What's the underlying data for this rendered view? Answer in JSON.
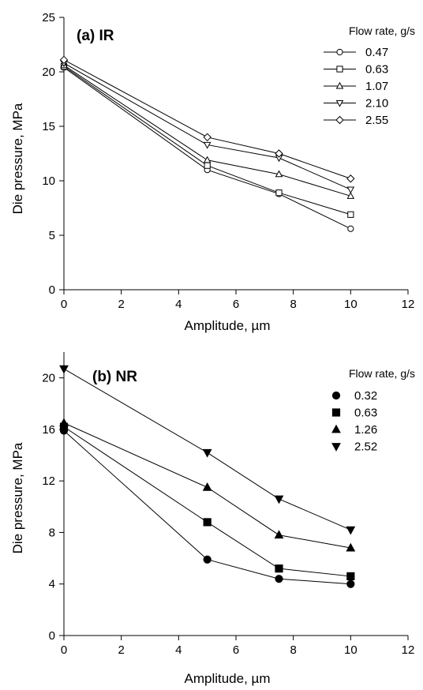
{
  "chart_data": [
    {
      "type": "line",
      "title": "(a) IR",
      "xlabel": "Amplitude, µm",
      "ylabel": "Die pressure, MPa",
      "xlim": [
        0,
        12
      ],
      "ylim": [
        0,
        25
      ],
      "xticks": [
        0,
        2,
        4,
        6,
        8,
        10,
        12
      ],
      "yticks": [
        0,
        5,
        10,
        15,
        20,
        25
      ],
      "grid": false,
      "legend_title": "Flow rate, g/s",
      "legend_placement": "top-right",
      "marker_style": "open",
      "x": [
        0,
        5,
        7.5,
        10
      ],
      "series": [
        {
          "name": "0.47",
          "marker": "circle",
          "values": [
            20.4,
            11.0,
            8.8,
            5.6
          ]
        },
        {
          "name": "0.63",
          "marker": "square",
          "values": [
            20.5,
            11.4,
            8.9,
            6.9
          ]
        },
        {
          "name": "1.07",
          "marker": "triangle-up",
          "values": [
            20.6,
            11.9,
            10.6,
            8.6
          ]
        },
        {
          "name": "2.10",
          "marker": "triangle-down",
          "values": [
            20.8,
            13.3,
            12.1,
            9.2
          ]
        },
        {
          "name": "2.55",
          "marker": "diamond",
          "values": [
            21.1,
            14.0,
            12.5,
            10.2
          ]
        }
      ]
    },
    {
      "type": "line",
      "title": "(b) NR",
      "xlabel": "Amplitude, µm",
      "ylabel": "Die pressure, MPa",
      "xlim": [
        0,
        12
      ],
      "ylim": [
        0,
        22
      ],
      "xticks": [
        0,
        2,
        4,
        6,
        8,
        10,
        12
      ],
      "yticks": [
        0,
        4,
        8,
        12,
        16,
        20
      ],
      "grid": false,
      "legend_title": "Flow rate, g/s",
      "legend_placement": "top-right",
      "marker_style": "filled",
      "x": [
        0,
        5,
        7.5,
        10
      ],
      "series": [
        {
          "name": "0.32",
          "marker": "circle",
          "values": [
            15.9,
            5.9,
            4.4,
            4.0
          ]
        },
        {
          "name": "0.63",
          "marker": "square",
          "values": [
            16.2,
            8.8,
            5.2,
            4.6
          ]
        },
        {
          "name": "1.26",
          "marker": "triangle-up",
          "values": [
            16.5,
            11.5,
            7.8,
            6.8
          ]
        },
        {
          "name": "2.52",
          "marker": "triangle-down",
          "values": [
            20.7,
            14.2,
            10.6,
            8.2
          ]
        }
      ]
    }
  ]
}
